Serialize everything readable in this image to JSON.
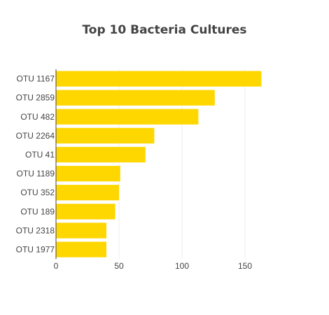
{
  "chart_data": {
    "type": "bar",
    "orientation": "horizontal",
    "title": "Top 10 Bacteria Cultures",
    "categories": [
      "OTU 1167",
      "OTU 2859",
      "OTU 482",
      "OTU 2264",
      "OTU 41",
      "OTU 1189",
      "OTU 352",
      "OTU 189",
      "OTU 2318",
      "OTU 1977"
    ],
    "values": [
      163,
      126,
      113,
      78,
      71,
      51,
      50,
      47,
      40,
      40
    ],
    "xlim": [
      0,
      175
    ],
    "xticks": [
      0,
      50,
      100,
      150
    ],
    "grid": true,
    "bar_color": "#FFD700"
  }
}
